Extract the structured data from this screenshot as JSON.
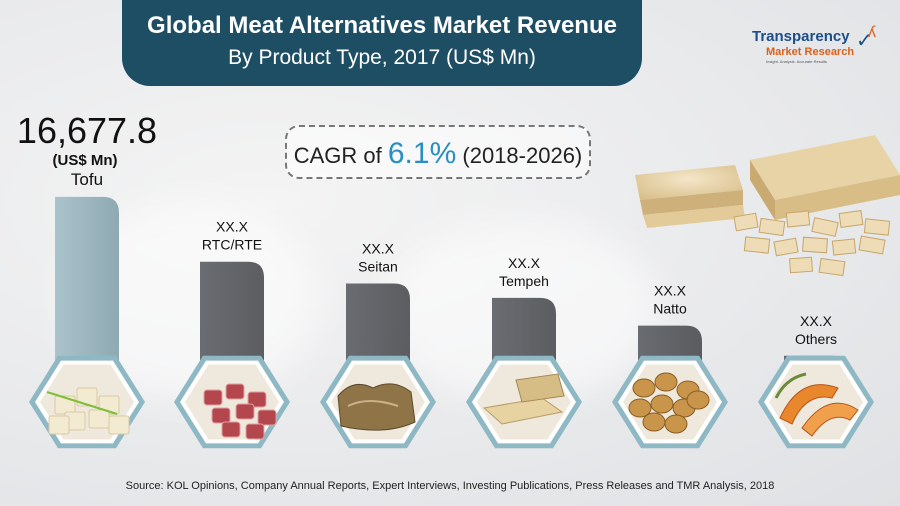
{
  "header": {
    "title_line1": "Global Meat Alternatives Market Revenue",
    "title_line2": "By Product Type, 2017 (US$ Mn)"
  },
  "logo": {
    "name_line1": "Transparency",
    "name_line2": "Market Research",
    "tagline": "Insight. Analysis. Accurate Results"
  },
  "cagr": {
    "prefix": "CAGR of",
    "value": "6.1%",
    "period": "(2018-2026)"
  },
  "source": "Source: KOL Opinions, Company Annual Reports, Expert Interviews, Investing Publications, Press Releases and TMR Analysis, 2018",
  "colors": {
    "banner": "#1d4e63",
    "bar_light": "#aac3cc",
    "bar_dark": "#4a4c50",
    "hex_border": "#8fb8c5",
    "accent": "#2a8fc0"
  },
  "icons": [
    "tofu-icon",
    "raw-meat-icon",
    "seitan-icon",
    "tempeh-icon",
    "natto-icon",
    "squash-icon"
  ],
  "chart_data": {
    "type": "bar",
    "categories": [
      "Tofu",
      "RTC/RTE",
      "Seitan",
      "Tempeh",
      "Natto",
      "Others"
    ],
    "value_labels": [
      "16,677.8",
      "XX.X",
      "XX.X",
      "XX.X",
      "XX.X",
      "XX.X"
    ],
    "unit_label": "(US$ Mn)",
    "values": [
      16677.8,
      11300,
      9500,
      8300,
      6000,
      3500
    ],
    "ylim": [
      0,
      17000
    ],
    "title": "Global Meat Alternatives Market Revenue By Product Type, 2017 (US$ Mn)",
    "xlabel": "",
    "ylabel": ""
  }
}
